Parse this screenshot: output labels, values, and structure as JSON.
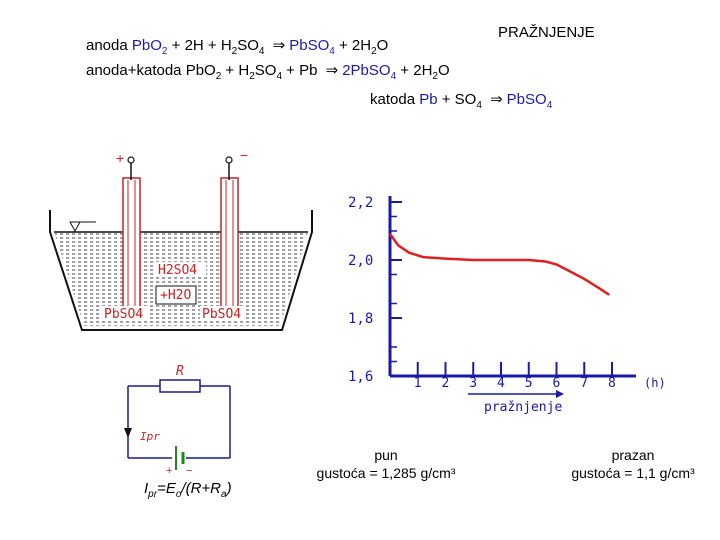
{
  "title": "PRAŽNJENJE",
  "reactions": {
    "anode": {
      "label": "anoda ",
      "reactant": "PbO2",
      "rest": " + 2H + H2SO4 ",
      "arrow": "⇒",
      "product": "PbSO4",
      "tail": " + 2H2O"
    },
    "total": {
      "label": "anoda+katoda ",
      "reactants": "PbO2 + H2SO4 + Pb ",
      "arrow": "⇒",
      "product": "2PbSO4",
      "tail": " + 2H2O"
    },
    "cathode": {
      "label": "katoda ",
      "reactant": "Pb",
      "rest": " + SO4 ",
      "arrow": "⇒",
      "product": "PbSO4"
    }
  },
  "cell": {
    "plus": "+",
    "minus": "−",
    "electrolyte_top": "H2SO4",
    "electrolyte_bottom": "+H2O",
    "left_plate": "PbSO4",
    "right_plate": "PbSO4",
    "colors": {
      "annotation": "#cc2222",
      "hatch": "#444444",
      "ink": "#111111"
    }
  },
  "circuit": {
    "resistor": "R",
    "current": "Ipr",
    "plus": "+",
    "minus": "−",
    "colors": {
      "wire": "#1a1a8c",
      "annotation": "#cc2222",
      "battery": "#1a8a1a"
    }
  },
  "chart_data": {
    "type": "line",
    "xlabel": "pražnjenje",
    "x_unit": "(h)",
    "x_ticks": [
      "1",
      "2",
      "3",
      "4",
      "5",
      "6",
      "7",
      "8"
    ],
    "y_ticks": [
      "2,2",
      "2,0",
      "1,8",
      "1,6"
    ],
    "xlim": [
      0,
      8
    ],
    "ylim": [
      1.6,
      2.2
    ],
    "grid": false,
    "series": [
      {
        "color": "#e02020",
        "points": [
          [
            0,
            2.09
          ],
          [
            0.3,
            2.05
          ],
          [
            0.7,
            2.025
          ],
          [
            1.2,
            2.01
          ],
          [
            2,
            2.005
          ],
          [
            3,
            2.0
          ],
          [
            4,
            2.0
          ],
          [
            5,
            2.0
          ],
          [
            5.6,
            1.995
          ],
          [
            6,
            1.985
          ],
          [
            6.5,
            1.96
          ],
          [
            7,
            1.935
          ],
          [
            7.5,
            1.905
          ],
          [
            7.9,
            1.88
          ]
        ]
      }
    ],
    "colors": {
      "axis": "#1a1aa8",
      "label": "#1a1aa8",
      "curve": "#e02020"
    }
  },
  "captions": {
    "full_state": "pun",
    "full_density": "gustoća = 1,285 g/cm³",
    "empty_state": "prazan",
    "empty_density": "gustoća = 1,1 g/cm³"
  },
  "formula": {
    "lhs": "I",
    "lhs_sub": "pr",
    "eq": "=E",
    "e_sub": "o",
    "mid": "/(R+R",
    "r_sub": "a",
    "end": ")"
  }
}
